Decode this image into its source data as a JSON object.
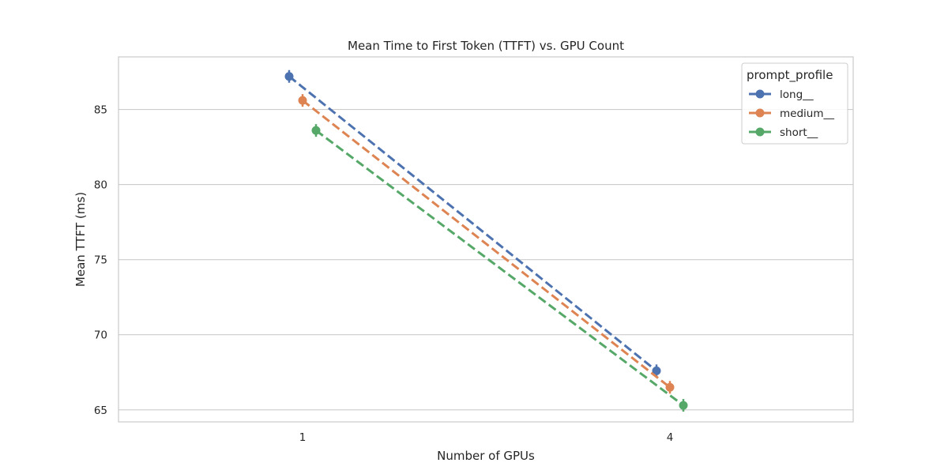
{
  "chart_data": {
    "type": "line",
    "title": "Mean Time to First Token (TTFT) vs. GPU Count",
    "xlabel": "Number of GPUs",
    "ylabel": "Mean TTFT (ms)",
    "categories": [
      "1",
      "4"
    ],
    "ylim": [
      64.2,
      88.5
    ],
    "yticks": [
      65,
      70,
      75,
      80,
      85
    ],
    "grid": "horizontal",
    "line_style": "dashed",
    "legend": {
      "title": "prompt_profile",
      "placement": "top-right"
    },
    "series": [
      {
        "name": "long__",
        "color": "#4c72b0",
        "values": [
          87.2,
          67.6
        ]
      },
      {
        "name": "medium__",
        "color": "#dd8452",
        "values": [
          85.6,
          66.5
        ]
      },
      {
        "name": "short__",
        "color": "#55a868",
        "values": [
          83.6,
          65.3
        ]
      }
    ]
  }
}
